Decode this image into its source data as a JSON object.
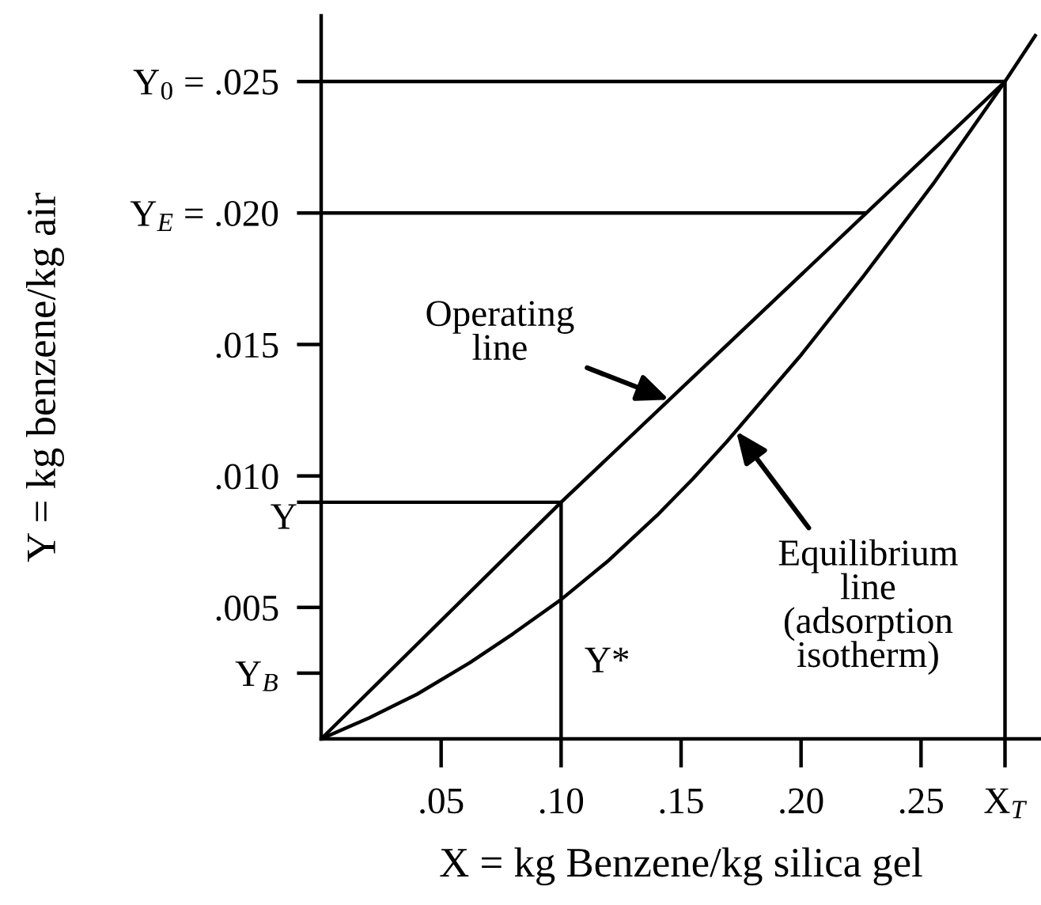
{
  "chart_data": {
    "type": "line",
    "xlabel": "X = kg Benzene/kg silica gel",
    "ylabel": "Y = kg benzene/kg air",
    "xlim": [
      0,
      0.3
    ],
    "ylim": [
      0,
      0.0275
    ],
    "xticks": [
      {
        "value": 0.05,
        "label": ".05"
      },
      {
        "value": 0.1,
        "label": ".10"
      },
      {
        "value": 0.15,
        "label": ".15"
      },
      {
        "value": 0.2,
        "label": ".20"
      },
      {
        "value": 0.25,
        "label": ".25"
      },
      {
        "value": 0.285,
        "label": "X$_{T}$"
      }
    ],
    "yticks": [
      {
        "value": 0.0025,
        "label": "Y$_{B}$"
      },
      {
        "value": 0.005,
        "label": ".005"
      },
      {
        "value": 0.009,
        "label": null
      },
      {
        "value": 0.01,
        "label": ".010"
      },
      {
        "value": 0.015,
        "label": ".015"
      },
      {
        "value": 0.02,
        "label": "Y$_{E}$ = .020"
      },
      {
        "value": 0.025,
        "label": "Y$_{0}$ = .025"
      }
    ],
    "series": [
      {
        "color": "#000000",
        "x": [
          0,
          0.1,
          0.285
        ],
        "values": [
          0,
          0.009,
          0.025
        ]
      },
      {
        "color": "#000000",
        "x": [
          0,
          0.02,
          0.04,
          0.062,
          0.08,
          0.1,
          0.12,
          0.14,
          0.155,
          0.169,
          0.2,
          0.226,
          0.255,
          0.285,
          0.298
        ],
        "values": [
          0,
          0.0008,
          0.0017,
          0.0029,
          0.004,
          0.0053,
          0.0068,
          0.0085,
          0.0099,
          0.0113,
          0.0146,
          0.0176,
          0.0211,
          0.025,
          0.0268
        ]
      },
      {
        "color": "#000000",
        "x": [
          0,
          0.285
        ],
        "values": [
          0.025,
          0.025
        ]
      },
      {
        "color": "#000000",
        "x": [
          0.285,
          0.285
        ],
        "values": [
          0,
          0.025
        ]
      },
      {
        "color": "#000000",
        "x": [
          0,
          0.227
        ],
        "values": [
          0.02,
          0.02
        ]
      },
      {
        "color": "#000000",
        "x": [
          0,
          0.1
        ],
        "values": [
          0.009,
          0.009
        ]
      },
      {
        "color": "#000000",
        "x": [
          0.1,
          0.1
        ],
        "values": [
          0,
          0.009
        ]
      }
    ],
    "annotations": [
      {
        "text": "Operating\nline",
        "x": 0.145,
        "y": 0.0129
      },
      {
        "text": "Equilibrium\nline\n(adsorption\nisotherm)",
        "x": 0.173,
        "y": 0.0117
      },
      {
        "text": "Y*",
        "x": 0.1,
        "y": 0.0053
      },
      {
        "text": "Y",
        "x": 0,
        "y": 0.009
      }
    ]
  }
}
